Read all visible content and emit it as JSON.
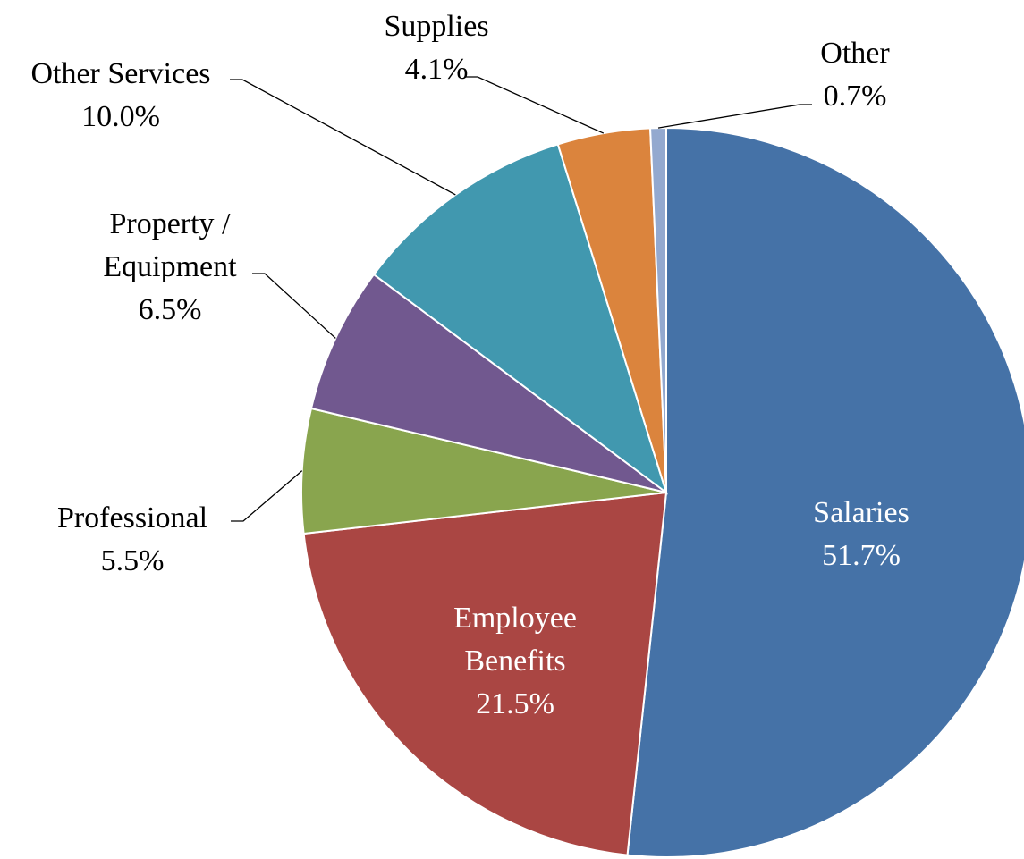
{
  "chart_data": {
    "type": "pie",
    "title": "",
    "slices": [
      {
        "name": "Salaries",
        "label": "Salaries",
        "value_label": "51.7%",
        "value": 51.7,
        "color": "#4572A7"
      },
      {
        "name": "Employee Benefits",
        "label_lines": [
          "Employee",
          "Benefits"
        ],
        "value_label": "21.5%",
        "value": 21.5,
        "color": "#AA4643"
      },
      {
        "name": "Professional",
        "label": "Professional",
        "value_label": "5.5%",
        "value": 5.5,
        "color": "#89A54E"
      },
      {
        "name": "Property / Equipment",
        "label_lines": [
          "Property  /",
          "Equipment"
        ],
        "value_label": "6.5%",
        "value": 6.5,
        "color": "#71588F"
      },
      {
        "name": "Other Services",
        "label": "Other Services",
        "value_label": "10.0%",
        "value": 10.0,
        "color": "#4198AF"
      },
      {
        "name": "Supplies",
        "label": "Supplies",
        "value_label": "4.1%",
        "value": 4.1,
        "color": "#DB843D"
      },
      {
        "name": "Other",
        "label": "Other",
        "value_label": "0.7%",
        "value": 0.7,
        "color": "#93A9CF"
      }
    ],
    "start_angle_deg": 0,
    "direction": "clockwise",
    "labels": "data labels with leader lines",
    "legend": "none"
  }
}
